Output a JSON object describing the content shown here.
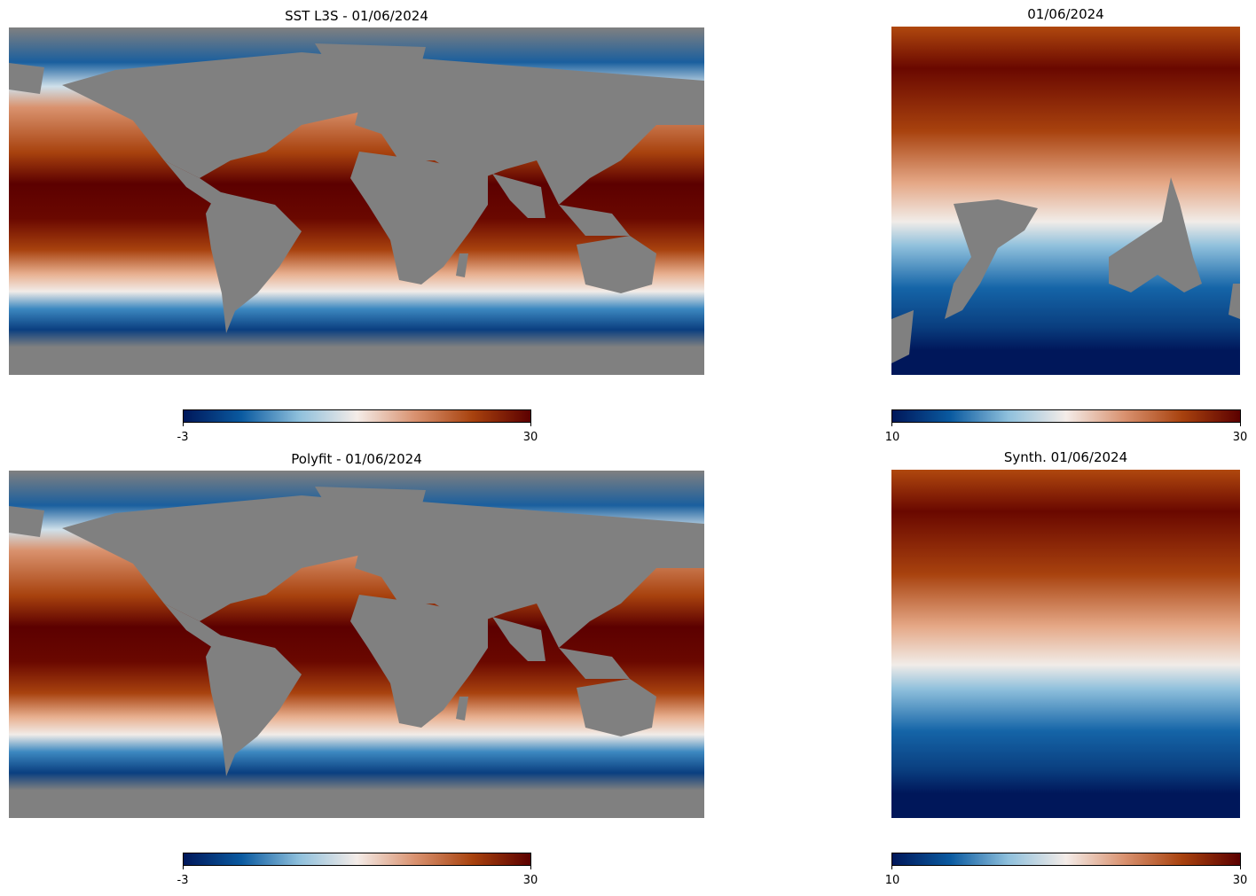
{
  "colors": {
    "land": "#808080",
    "colormap": [
      "#00175a",
      "#0a5aa0",
      "#8fc0dc",
      "#f4ece8",
      "#d99270",
      "#a8420e",
      "#5c0000"
    ]
  },
  "panels": [
    {
      "id": "sst-l3s",
      "title": "SST L3S - 01/06/2024",
      "type": "global",
      "colorbar": {
        "min": "-3",
        "max": "30"
      }
    },
    {
      "id": "regional-observed",
      "title": "01/06/2024",
      "type": "regional",
      "colorbar": {
        "min": "10",
        "max": "30"
      }
    },
    {
      "id": "polyfit",
      "title": "Polyfit -  01/06/2024",
      "type": "global",
      "colorbar": {
        "min": "-3",
        "max": "30"
      }
    },
    {
      "id": "synth",
      "title": "Synth. 01/06/2024",
      "type": "regional",
      "colorbar": {
        "min": "10",
        "max": "30"
      }
    }
  ]
}
